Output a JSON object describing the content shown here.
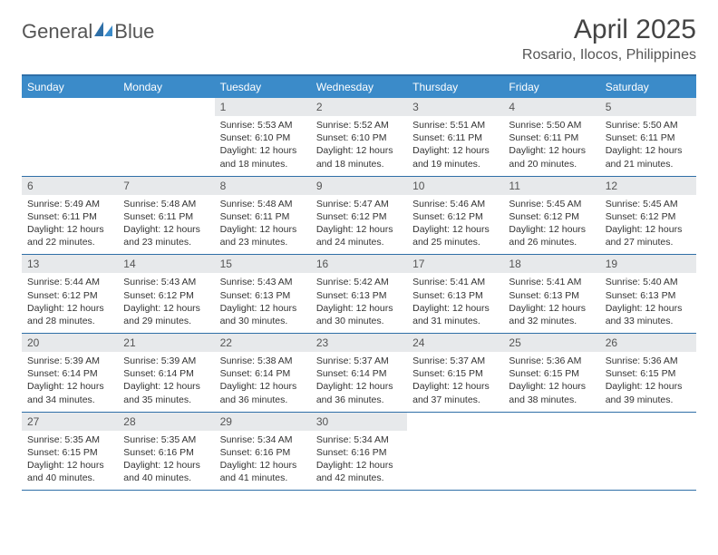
{
  "brand": {
    "name_1": "General",
    "name_2": "Blue"
  },
  "colors": {
    "accent": "#3b8bc9",
    "header_border": "#2f6fa7",
    "daynum_bg": "#e7e9eb",
    "text": "#333333",
    "muted": "#555555"
  },
  "title": "April 2025",
  "location": "Rosario, Ilocos, Philippines",
  "day_headers": [
    "Sunday",
    "Monday",
    "Tuesday",
    "Wednesday",
    "Thursday",
    "Friday",
    "Saturday"
  ],
  "weeks": [
    [
      null,
      null,
      {
        "n": "1",
        "sr": "5:53 AM",
        "ss": "6:10 PM",
        "dl": "12 hours and 18 minutes."
      },
      {
        "n": "2",
        "sr": "5:52 AM",
        "ss": "6:10 PM",
        "dl": "12 hours and 18 minutes."
      },
      {
        "n": "3",
        "sr": "5:51 AM",
        "ss": "6:11 PM",
        "dl": "12 hours and 19 minutes."
      },
      {
        "n": "4",
        "sr": "5:50 AM",
        "ss": "6:11 PM",
        "dl": "12 hours and 20 minutes."
      },
      {
        "n": "5",
        "sr": "5:50 AM",
        "ss": "6:11 PM",
        "dl": "12 hours and 21 minutes."
      }
    ],
    [
      {
        "n": "6",
        "sr": "5:49 AM",
        "ss": "6:11 PM",
        "dl": "12 hours and 22 minutes."
      },
      {
        "n": "7",
        "sr": "5:48 AM",
        "ss": "6:11 PM",
        "dl": "12 hours and 23 minutes."
      },
      {
        "n": "8",
        "sr": "5:48 AM",
        "ss": "6:11 PM",
        "dl": "12 hours and 23 minutes."
      },
      {
        "n": "9",
        "sr": "5:47 AM",
        "ss": "6:12 PM",
        "dl": "12 hours and 24 minutes."
      },
      {
        "n": "10",
        "sr": "5:46 AM",
        "ss": "6:12 PM",
        "dl": "12 hours and 25 minutes."
      },
      {
        "n": "11",
        "sr": "5:45 AM",
        "ss": "6:12 PM",
        "dl": "12 hours and 26 minutes."
      },
      {
        "n": "12",
        "sr": "5:45 AM",
        "ss": "6:12 PM",
        "dl": "12 hours and 27 minutes."
      }
    ],
    [
      {
        "n": "13",
        "sr": "5:44 AM",
        "ss": "6:12 PM",
        "dl": "12 hours and 28 minutes."
      },
      {
        "n": "14",
        "sr": "5:43 AM",
        "ss": "6:12 PM",
        "dl": "12 hours and 29 minutes."
      },
      {
        "n": "15",
        "sr": "5:43 AM",
        "ss": "6:13 PM",
        "dl": "12 hours and 30 minutes."
      },
      {
        "n": "16",
        "sr": "5:42 AM",
        "ss": "6:13 PM",
        "dl": "12 hours and 30 minutes."
      },
      {
        "n": "17",
        "sr": "5:41 AM",
        "ss": "6:13 PM",
        "dl": "12 hours and 31 minutes."
      },
      {
        "n": "18",
        "sr": "5:41 AM",
        "ss": "6:13 PM",
        "dl": "12 hours and 32 minutes."
      },
      {
        "n": "19",
        "sr": "5:40 AM",
        "ss": "6:13 PM",
        "dl": "12 hours and 33 minutes."
      }
    ],
    [
      {
        "n": "20",
        "sr": "5:39 AM",
        "ss": "6:14 PM",
        "dl": "12 hours and 34 minutes."
      },
      {
        "n": "21",
        "sr": "5:39 AM",
        "ss": "6:14 PM",
        "dl": "12 hours and 35 minutes."
      },
      {
        "n": "22",
        "sr": "5:38 AM",
        "ss": "6:14 PM",
        "dl": "12 hours and 36 minutes."
      },
      {
        "n": "23",
        "sr": "5:37 AM",
        "ss": "6:14 PM",
        "dl": "12 hours and 36 minutes."
      },
      {
        "n": "24",
        "sr": "5:37 AM",
        "ss": "6:15 PM",
        "dl": "12 hours and 37 minutes."
      },
      {
        "n": "25",
        "sr": "5:36 AM",
        "ss": "6:15 PM",
        "dl": "12 hours and 38 minutes."
      },
      {
        "n": "26",
        "sr": "5:36 AM",
        "ss": "6:15 PM",
        "dl": "12 hours and 39 minutes."
      }
    ],
    [
      {
        "n": "27",
        "sr": "5:35 AM",
        "ss": "6:15 PM",
        "dl": "12 hours and 40 minutes."
      },
      {
        "n": "28",
        "sr": "5:35 AM",
        "ss": "6:16 PM",
        "dl": "12 hours and 40 minutes."
      },
      {
        "n": "29",
        "sr": "5:34 AM",
        "ss": "6:16 PM",
        "dl": "12 hours and 41 minutes."
      },
      {
        "n": "30",
        "sr": "5:34 AM",
        "ss": "6:16 PM",
        "dl": "12 hours and 42 minutes."
      },
      null,
      null,
      null
    ]
  ],
  "labels": {
    "sunrise": "Sunrise:",
    "sunset": "Sunset:",
    "daylight": "Daylight:"
  }
}
